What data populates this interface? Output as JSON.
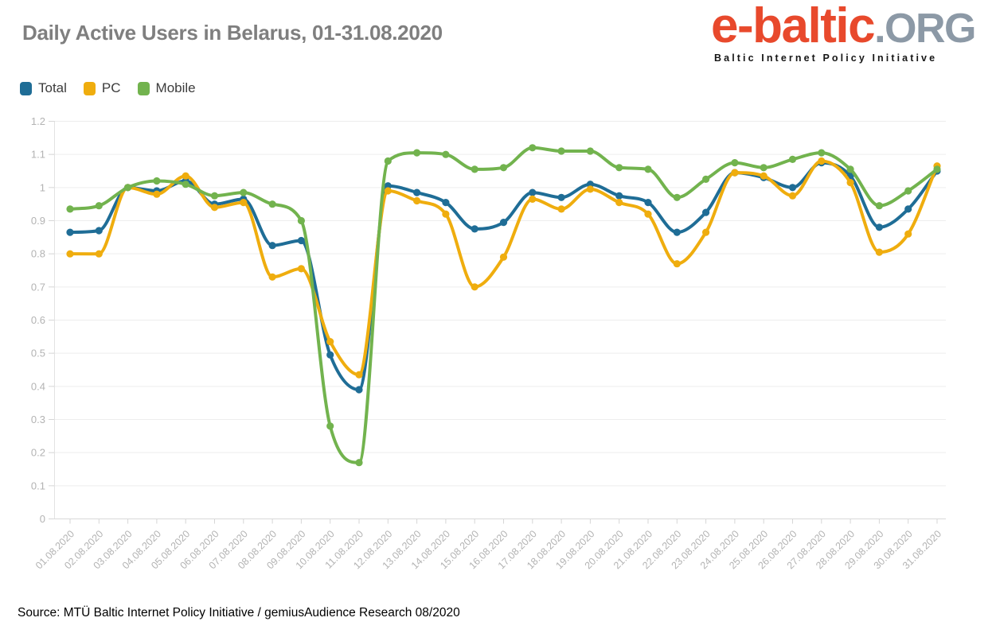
{
  "header": {
    "title": "Daily Active Users in Belarus, 01-31.08.2020",
    "logo": {
      "part1": "e-baltic",
      "part2": ".ORG",
      "subtitle": "Baltic Internet Policy Initiative",
      "color_main": "#e8492c",
      "color_org": "#8c99a6"
    }
  },
  "legend": [
    {
      "label": "Total",
      "color": "#1f6d96"
    },
    {
      "label": "PC",
      "color": "#efad0e"
    },
    {
      "label": "Mobile",
      "color": "#72b34e"
    }
  ],
  "footer": {
    "source": "Source: MTÜ Baltic Internet Policy Initiative / gemiusAudience Research 08/2020"
  },
  "chart_data": {
    "type": "line",
    "title": "Daily Active Users in Belarus, 01-31.08.2020",
    "categories": [
      "01.08.2020",
      "02.08.2020",
      "03.08.2020",
      "04.08.2020",
      "05.08.2020",
      "06.08.2020",
      "07.08.2020",
      "08.08.2020",
      "09.08.2020",
      "10.08.2020",
      "11.08.2020",
      "12.08.2020",
      "13.08.2020",
      "14.08.2020",
      "15.08.2020",
      "16.08.2020",
      "17.08.2020",
      "18.08.2020",
      "19.08.2020",
      "20.08.2020",
      "21.08.2020",
      "22.08.2020",
      "23.08.2020",
      "24.08.2020",
      "25.08.2020",
      "26.08.2020",
      "27.08.2020",
      "28.08.2020",
      "29.08.2020",
      "30.08.2020",
      "31.08.2020"
    ],
    "series": [
      {
        "name": "Total",
        "color": "#1f6d96",
        "values": [
          0.865,
          0.87,
          1.0,
          0.99,
          1.02,
          0.95,
          0.965,
          0.825,
          0.84,
          0.495,
          0.39,
          1.005,
          0.985,
          0.955,
          0.875,
          0.895,
          0.985,
          0.97,
          1.01,
          0.975,
          0.955,
          0.865,
          0.925,
          1.045,
          1.03,
          1.0,
          1.075,
          1.035,
          0.88,
          0.935,
          1.05
        ]
      },
      {
        "name": "PC",
        "color": "#efad0e",
        "values": [
          0.8,
          0.8,
          1.0,
          0.98,
          1.035,
          0.94,
          0.955,
          0.73,
          0.755,
          0.535,
          0.435,
          0.99,
          0.96,
          0.92,
          0.7,
          0.79,
          0.965,
          0.935,
          0.995,
          0.955,
          0.92,
          0.77,
          0.865,
          1.045,
          1.035,
          0.975,
          1.08,
          1.015,
          0.805,
          0.86,
          1.065
        ]
      },
      {
        "name": "Mobile",
        "color": "#72b34e",
        "values": [
          0.935,
          0.945,
          1.0,
          1.02,
          1.01,
          0.975,
          0.985,
          0.95,
          0.9,
          0.28,
          0.17,
          1.08,
          1.105,
          1.1,
          1.055,
          1.06,
          1.12,
          1.11,
          1.11,
          1.06,
          1.055,
          0.97,
          1.025,
          1.075,
          1.06,
          1.085,
          1.105,
          1.055,
          0.945,
          0.99,
          1.055
        ]
      }
    ],
    "ylim": [
      0,
      1.2
    ],
    "yticks": [
      "0",
      "0.1",
      "0.2",
      "0.3",
      "0.4",
      "0.5",
      "0.6",
      "0.7",
      "0.8",
      "0.9",
      "1",
      "1.1",
      "1.2"
    ],
    "grid": true,
    "legend_position": "top-left",
    "marker": "circle",
    "smooth": true
  }
}
